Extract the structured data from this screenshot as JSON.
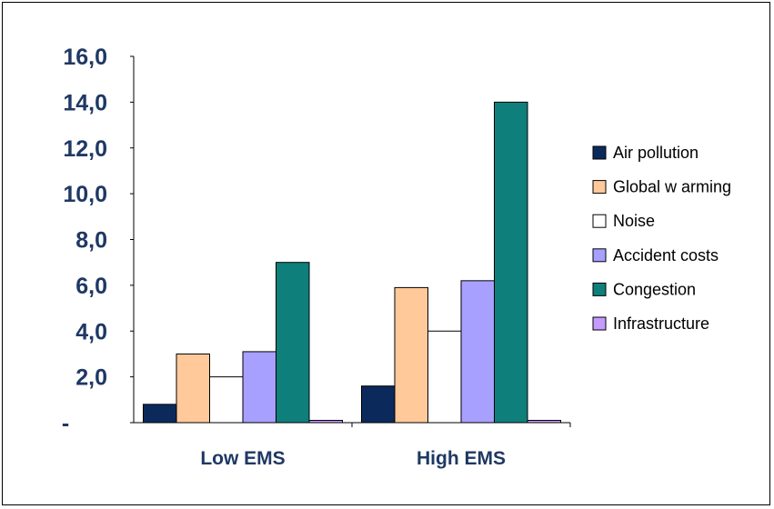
{
  "chart_data": {
    "type": "bar",
    "categories": [
      "Low EMS",
      "High EMS"
    ],
    "series": [
      {
        "name": "Air pollution",
        "values": [
          0.8,
          1.6
        ],
        "color": "#0b2a5b"
      },
      {
        "name": "Global w arming",
        "values": [
          3.0,
          5.9
        ],
        "color": "#ffc99a"
      },
      {
        "name": "Noise",
        "values": [
          2.0,
          4.0
        ],
        "color": "#ffffff"
      },
      {
        "name": "Accident costs",
        "values": [
          3.1,
          6.2
        ],
        "color": "#a7a0ff"
      },
      {
        "name": "Congestion",
        "values": [
          7.0,
          14.0
        ],
        "color": "#0e7f7b"
      },
      {
        "name": "Infrastructure",
        "values": [
          0.1,
          0.1
        ],
        "color": "#c59bff"
      }
    ],
    "yticks": [
      "-",
      "2,0",
      "4,0",
      "6,0",
      "8,0",
      "10,0",
      "12,0",
      "14,0",
      "16,0"
    ],
    "ylim": [
      0,
      16
    ],
    "grid": false,
    "legend_position": "right",
    "xlabel": "",
    "ylabel": "",
    "title": ""
  }
}
